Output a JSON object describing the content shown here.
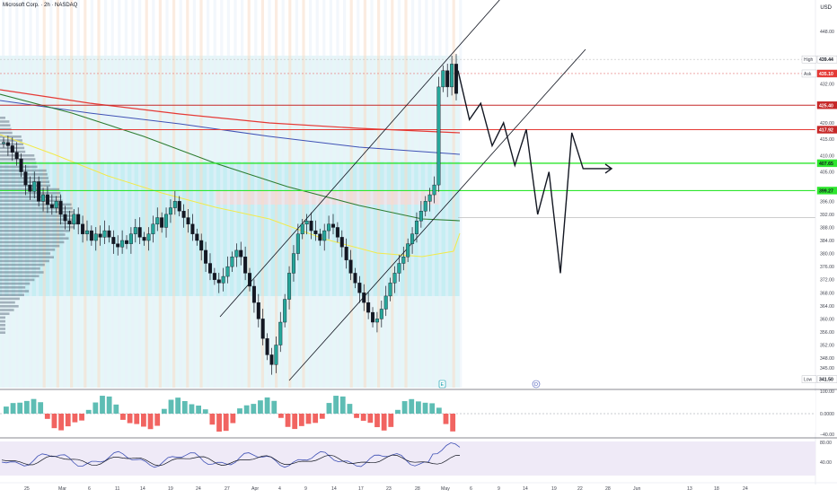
{
  "header": {
    "symbol_line": "Microsoft Corp. · 2h · NASDAQ",
    "currency": "USD"
  },
  "chart_data": {
    "type": "candlestick",
    "symbol": "Microsoft Corp.",
    "interval": "2h",
    "exchange": "NASDAQ",
    "y_ticks": [
      "448.00",
      "440.00",
      "432.00",
      "420.00",
      "415.00",
      "410.00",
      "405.00",
      "396.00",
      "392.00",
      "388.00",
      "384.00",
      "380.00",
      "376.00",
      "372.00",
      "368.00",
      "364.00",
      "360.00",
      "356.00",
      "352.00",
      "348.00",
      "345.00"
    ],
    "price_labels": [
      {
        "text": "High",
        "value": "439.44",
        "kind": "high"
      },
      {
        "text": "Ask",
        "value": "435.10",
        "kind": "ask"
      },
      {
        "text": "",
        "value": "425.40",
        "kind": "level"
      },
      {
        "text": "",
        "value": "417.92",
        "kind": "level"
      },
      {
        "text": "",
        "value": "407.65",
        "kind": "level_green"
      },
      {
        "text": "",
        "value": "399.27",
        "kind": "level_green"
      },
      {
        "text": "Low",
        "value": "341.50",
        "kind": "low"
      }
    ],
    "x_ticks": [
      "25",
      "Mar",
      "6",
      "11",
      "14",
      "19",
      "24",
      "27",
      "Apr",
      "4",
      "9",
      "14",
      "17",
      "23",
      "28",
      "May",
      "6",
      "9",
      "14",
      "19",
      "22",
      "28",
      "Jun",
      "13",
      "18",
      "24"
    ],
    "osc1_ticks": [
      "100.00",
      "0.0000",
      "−40.00"
    ],
    "osc2_ticks": [
      "80.00",
      "40.00"
    ],
    "close_series": [
      414,
      413,
      411,
      409,
      405,
      401,
      399,
      402,
      396,
      398,
      395,
      394,
      396,
      392,
      390,
      389,
      392,
      389,
      386,
      387,
      384,
      386,
      385,
      387,
      385,
      383,
      382,
      384,
      383,
      386,
      388,
      385,
      384,
      386,
      389,
      391,
      388,
      392,
      394,
      396,
      393,
      391,
      389,
      386,
      384,
      381,
      377,
      374,
      372,
      371,
      373,
      376,
      379,
      381,
      379,
      374,
      370,
      365,
      360,
      354,
      349,
      346,
      352,
      359,
      366,
      374,
      380,
      386,
      389,
      390,
      387,
      386,
      384,
      387,
      389,
      388,
      385,
      382,
      378,
      374,
      371,
      368,
      365,
      362,
      359,
      360,
      363,
      367,
      371,
      374,
      377,
      379,
      383,
      386,
      390,
      393,
      396,
      398,
      401,
      431,
      436,
      431,
      438,
      429
    ],
    "forecast_path": [
      436,
      421,
      426,
      413,
      420,
      407,
      418,
      392,
      405,
      374,
      417,
      406,
      406
    ],
    "annotations": {
      "earnings_marker": "E",
      "dividend_marker": "D"
    }
  }
}
